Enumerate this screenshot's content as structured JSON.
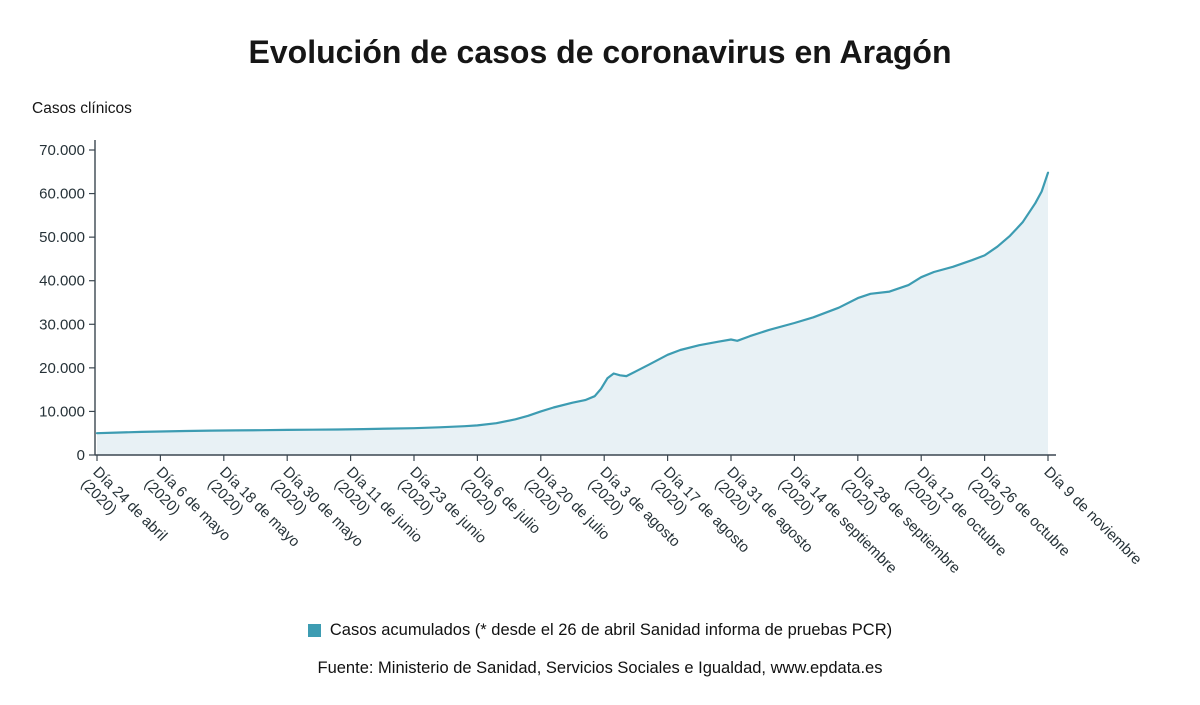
{
  "title": "Evolución de casos de coronavirus en Aragón",
  "y_axis_title": "Casos clínicos",
  "legend": {
    "label": "Casos acumulados (* desde el 26 de abril Sanidad informa de pruebas PCR)"
  },
  "source": "Fuente: Ministerio de Sanidad, Servicios Sociales e Igualdad, www.epdata.es",
  "colors": {
    "line": "#3d9cb2",
    "fill": "#e8f1f5",
    "axis": "#3b4750",
    "text": "#263238"
  },
  "chart_data": {
    "type": "area",
    "title": "Evolución de casos de coronavirus en Aragón",
    "ylabel": "Casos clínicos",
    "xlabel": "",
    "ylim": [
      0,
      70000
    ],
    "grid": false,
    "legend_position": "bottom",
    "y_ticks": [
      0,
      10000,
      20000,
      30000,
      40000,
      50000,
      60000,
      70000
    ],
    "y_tick_labels": [
      "0",
      "10.000",
      "20.000",
      "30.000",
      "40.000",
      "50.000",
      "60.000",
      "70.000"
    ],
    "categories": [
      [
        "Día 24 de abril",
        "(2020)"
      ],
      [
        "Día 6 de mayo",
        "(2020)"
      ],
      [
        "Día 18 de mayo",
        "(2020)"
      ],
      [
        "Día 30 de mayo",
        "(2020)"
      ],
      [
        "Día 11 de junio",
        "(2020)"
      ],
      [
        "Día 23 de junio",
        "(2020)"
      ],
      [
        "Día 6 de julio",
        "(2020)"
      ],
      [
        "Día 20 de julio",
        "(2020)"
      ],
      [
        "Día 3 de agosto",
        "(2020)"
      ],
      [
        "Día 17 de agosto",
        "(2020)"
      ],
      [
        "Día 31 de agosto",
        "(2020)"
      ],
      [
        "Día 14 de septiembre",
        "(2020)"
      ],
      [
        "Día 28 de septiembre",
        "(2020)"
      ],
      [
        "Día 12 de octubre",
        "(2020)"
      ],
      [
        "Día 26 de octubre",
        "(2020)"
      ],
      [
        "Día 9 de noviembre"
      ]
    ],
    "series": [
      {
        "name": "Casos acumulados",
        "points": [
          [
            0,
            5000
          ],
          [
            0.3,
            5150
          ],
          [
            0.7,
            5300
          ],
          [
            1,
            5400
          ],
          [
            1.4,
            5500
          ],
          [
            1.8,
            5600
          ],
          [
            2.2,
            5650
          ],
          [
            2.6,
            5700
          ],
          [
            3,
            5750
          ],
          [
            3.4,
            5800
          ],
          [
            3.8,
            5850
          ],
          [
            4.2,
            5950
          ],
          [
            4.6,
            6050
          ],
          [
            5,
            6150
          ],
          [
            5.4,
            6350
          ],
          [
            5.8,
            6600
          ],
          [
            6,
            6800
          ],
          [
            6.3,
            7300
          ],
          [
            6.6,
            8200
          ],
          [
            6.8,
            9000
          ],
          [
            7,
            10000
          ],
          [
            7.2,
            10900
          ],
          [
            7.5,
            12000
          ],
          [
            7.7,
            12600
          ],
          [
            7.85,
            13500
          ],
          [
            7.95,
            15200
          ],
          [
            8.05,
            17600
          ],
          [
            8.15,
            18700
          ],
          [
            8.25,
            18300
          ],
          [
            8.35,
            18100
          ],
          [
            8.5,
            19200
          ],
          [
            8.7,
            20700
          ],
          [
            9,
            23000
          ],
          [
            9.2,
            24100
          ],
          [
            9.5,
            25200
          ],
          [
            9.8,
            26000
          ],
          [
            10,
            26500
          ],
          [
            10.1,
            26200
          ],
          [
            10.3,
            27300
          ],
          [
            10.6,
            28700
          ],
          [
            11,
            30300
          ],
          [
            11.3,
            31600
          ],
          [
            11.7,
            33800
          ],
          [
            12,
            36000
          ],
          [
            12.2,
            37000
          ],
          [
            12.5,
            37500
          ],
          [
            12.8,
            39000
          ],
          [
            13,
            40800
          ],
          [
            13.2,
            42000
          ],
          [
            13.5,
            43200
          ],
          [
            13.8,
            44700
          ],
          [
            14,
            45800
          ],
          [
            14.2,
            47800
          ],
          [
            14.4,
            50300
          ],
          [
            14.6,
            53400
          ],
          [
            14.8,
            57800
          ],
          [
            14.9,
            60500
          ],
          [
            15,
            64800
          ]
        ]
      }
    ]
  }
}
